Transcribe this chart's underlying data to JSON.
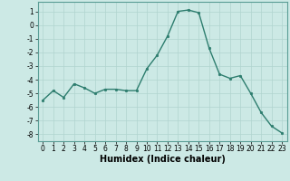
{
  "x": [
    0,
    1,
    2,
    3,
    4,
    5,
    6,
    7,
    8,
    9,
    10,
    11,
    12,
    13,
    14,
    15,
    16,
    17,
    18,
    19,
    20,
    21,
    22,
    23
  ],
  "y": [
    -5.5,
    -4.8,
    -5.3,
    -4.3,
    -4.6,
    -5.0,
    -4.7,
    -4.7,
    -4.8,
    -4.8,
    -3.2,
    -2.2,
    -0.8,
    1.0,
    1.1,
    0.9,
    -1.7,
    -3.6,
    -3.9,
    -3.7,
    -5.0,
    -6.4,
    -7.4,
    -7.9
  ],
  "line_color": "#2d7d6e",
  "marker": "o",
  "marker_size": 1.8,
  "linewidth": 1.0,
  "xlabel": "Humidex (Indice chaleur)",
  "xlabel_fontsize": 7,
  "xlim": [
    -0.5,
    23.5
  ],
  "ylim": [
    -8.5,
    1.7
  ],
  "yticks": [
    1,
    0,
    -1,
    -2,
    -3,
    -4,
    -5,
    -6,
    -7,
    -8
  ],
  "xticks": [
    0,
    1,
    2,
    3,
    4,
    5,
    6,
    7,
    8,
    9,
    10,
    11,
    12,
    13,
    14,
    15,
    16,
    17,
    18,
    19,
    20,
    21,
    22,
    23
  ],
  "background_color": "#cce9e5",
  "grid_color": "#b0d4cf",
  "tick_fontsize": 5.5,
  "spine_color": "#5a9e96"
}
